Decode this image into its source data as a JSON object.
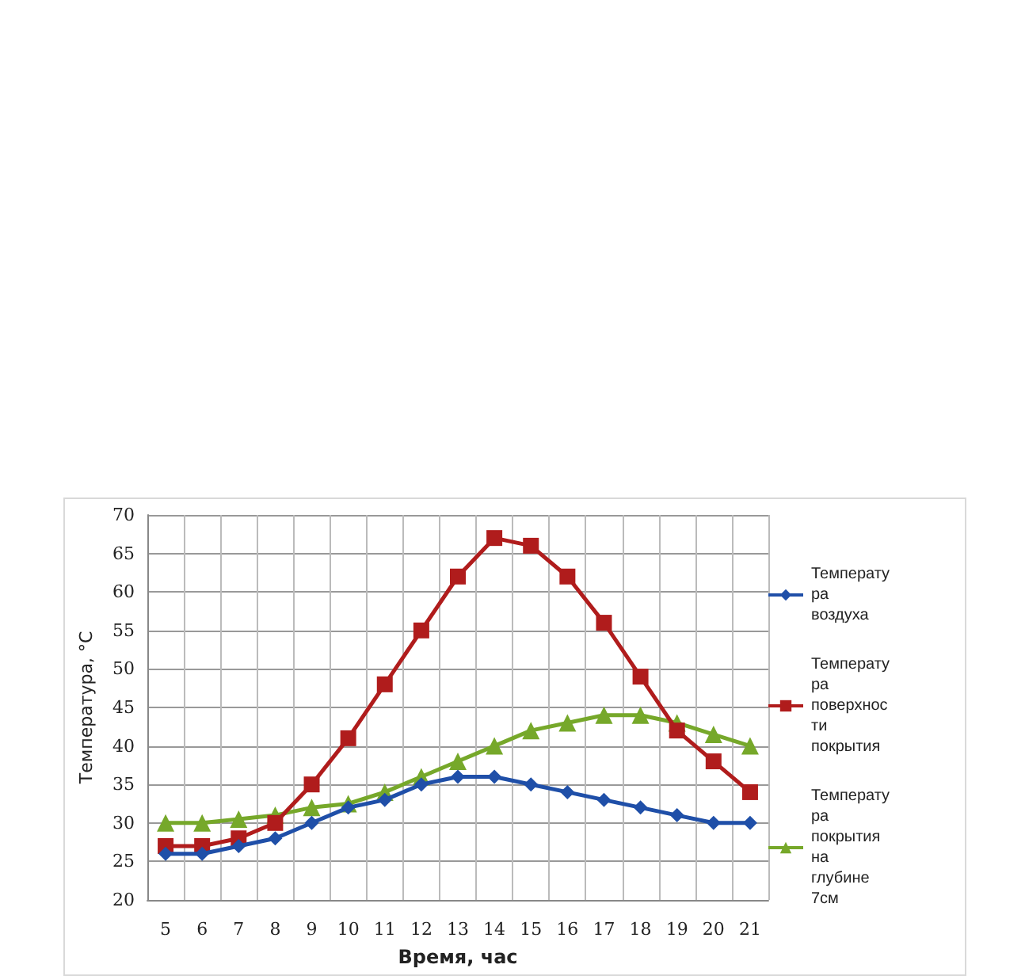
{
  "chart_data": {
    "type": "line",
    "xlabel": "Время, час",
    "ylabel": "Температура, °С",
    "categories": [
      "5",
      "6",
      "7",
      "8",
      "9",
      "10",
      "11",
      "12",
      "13",
      "14",
      "15",
      "16",
      "17",
      "18",
      "19",
      "20",
      "21"
    ],
    "series": [
      {
        "name": "Температура воздуха",
        "color": "#1f4fa8",
        "marker": "diamond",
        "values": [
          26,
          26,
          27,
          28,
          30,
          32,
          33,
          35,
          36,
          36,
          35,
          34,
          33,
          32,
          31,
          30,
          30
        ]
      },
      {
        "name": "Температура поверхности покрытия",
        "color": "#b01c1c",
        "marker": "square",
        "values": [
          27,
          27,
          28,
          30,
          35,
          41,
          48,
          55,
          62,
          67,
          66,
          62,
          56,
          49,
          42,
          38,
          34
        ]
      },
      {
        "name": "Температура покрытия на глубине 7см",
        "color": "#76a82a",
        "marker": "triangle",
        "values": [
          30,
          30,
          30.5,
          31,
          32,
          32.5,
          34,
          36,
          38,
          40,
          42,
          43,
          44,
          44,
          43,
          41.5,
          40
        ]
      }
    ],
    "ylim": [
      20,
      70
    ],
    "yticks": [
      20,
      25,
      30,
      35,
      40,
      45,
      50,
      55,
      60,
      65,
      70
    ],
    "grid": true,
    "legend": "right",
    "line_style": "solid"
  }
}
